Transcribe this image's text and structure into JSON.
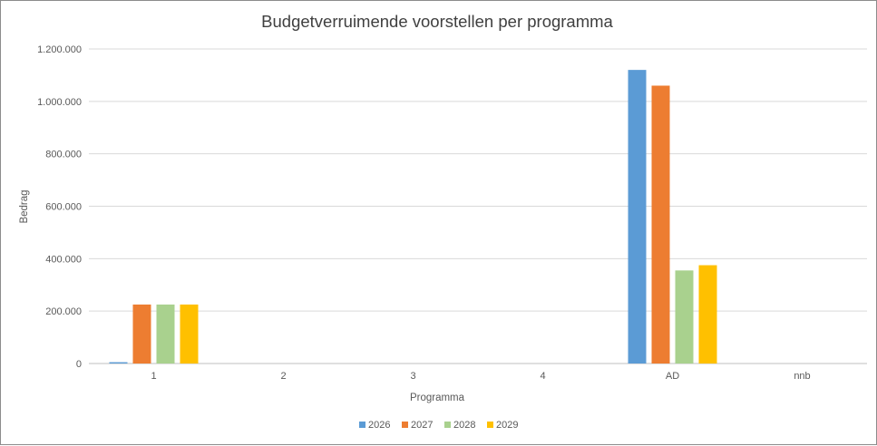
{
  "chart_data": {
    "type": "bar",
    "title": "Budgetverruimende voorstellen per programma",
    "xlabel": "Programma",
    "ylabel": "Bedrag",
    "categories": [
      "1",
      "2",
      "3",
      "4",
      "AD",
      "nnb"
    ],
    "series": [
      {
        "name": "2026",
        "color": "#5b9bd5",
        "values": [
          5000,
          0,
          0,
          0,
          1120000,
          0
        ]
      },
      {
        "name": "2027",
        "color": "#ed7d31",
        "values": [
          225000,
          0,
          0,
          0,
          1060000,
          0
        ]
      },
      {
        "name": "2028",
        "color": "#a9d18e",
        "values": [
          225000,
          0,
          0,
          0,
          355000,
          0
        ]
      },
      {
        "name": "2029",
        "color": "#ffc000",
        "values": [
          225000,
          0,
          0,
          0,
          375000,
          0
        ]
      }
    ],
    "ylim": [
      0,
      1200000
    ],
    "yticks": [
      0,
      200000,
      400000,
      600000,
      800000,
      1000000,
      1200000
    ],
    "ytick_labels": [
      "0",
      "200.000",
      "400.000",
      "600.000",
      "800.000",
      "1.000.000",
      "1.200.000"
    ],
    "grid": true,
    "legend_position": "bottom"
  }
}
